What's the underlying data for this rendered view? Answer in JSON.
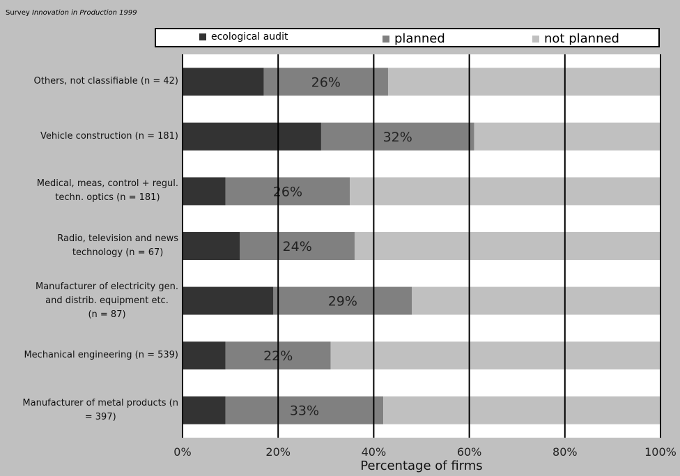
{
  "source_note": {
    "prefix": "Survey",
    "italic": "Innovation in Production 1999"
  },
  "chart_data": {
    "type": "bar",
    "orientation": "horizontal",
    "stacked": true,
    "categories": [
      "Others, not classifiable (n = 42)",
      "Vehicle construction    (n = 181)",
      "Medical, meas, control + regul.\ntechn. optics    (n = 181)",
      "Radio, television and news\ntechnology          (n = 67)",
      "Manufacturer of electricity gen.\nand distrib. equipment etc.\n(n = 87)",
      "Mechanical engineering (n = 539)",
      "Manufacturer of metal products (n\n= 397)"
    ],
    "series": [
      {
        "name": "ecological audit",
        "color": "#333333",
        "values": [
          17,
          29,
          9,
          12,
          19,
          9,
          9
        ]
      },
      {
        "name": "planned",
        "color": "#808080",
        "values": [
          26,
          32,
          26,
          24,
          29,
          22,
          33
        ]
      },
      {
        "name": "not planned",
        "color": "#c0c0c0",
        "values": [
          57,
          39,
          65,
          64,
          52,
          69,
          58
        ]
      }
    ],
    "data_labels": [
      "26%",
      "32%",
      "26%",
      "24%",
      "29%",
      "22%",
      "33%"
    ],
    "xlabel": "Percentage of firms",
    "xlim": [
      0,
      100
    ],
    "xticks": [
      "0%",
      "20%",
      "40%",
      "60%",
      "80%",
      "100%"
    ],
    "grid": true,
    "legend_position": "top"
  }
}
